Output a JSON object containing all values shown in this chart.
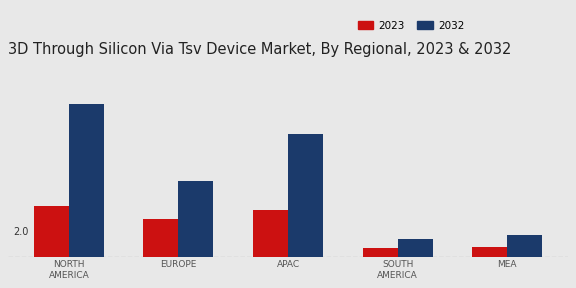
{
  "title": "3D Through Silicon Via Tsv Device Market, By Regional, 2023 & 2032",
  "categories": [
    "NORTH\nAMERICA",
    "EUROPE",
    "APAC",
    "SOUTH\nAMERICA",
    "MEA"
  ],
  "values_2023": [
    2.0,
    1.5,
    1.85,
    0.38,
    0.42
  ],
  "values_2032": [
    6.0,
    3.0,
    4.8,
    0.72,
    0.88
  ],
  "color_2023": "#cc1111",
  "color_2032": "#1b3a6b",
  "annotation_text": "2.0",
  "background_color": "#e8e8e8",
  "legend_labels": [
    "2023",
    "2032"
  ],
  "bar_width": 0.32,
  "ylim": [
    0,
    7.5
  ],
  "title_fontsize": 10.5,
  "axis_label_fontsize": 7.5,
  "tick_fontsize": 6.5
}
